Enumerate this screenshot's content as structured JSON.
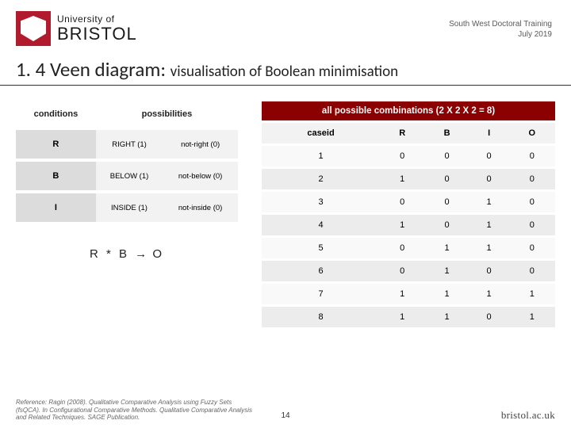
{
  "header": {
    "university_of": "University of",
    "bristol": "BRISTOL",
    "event_line1": "South West Doctoral Training",
    "event_line2": "July 2019"
  },
  "title": {
    "main": "1. 4 Veen diagram:",
    "sub": "visualisation of Boolean minimisation"
  },
  "conditions_table": {
    "headers": {
      "conditions": "conditions",
      "possibilities": "possibilities"
    },
    "rows": [
      {
        "cond": "R",
        "p1": "RIGHT (1)",
        "p2": "not-right (0)"
      },
      {
        "cond": "B",
        "p1": "BELOW (1)",
        "p2": "not-below (0)"
      },
      {
        "cond": "I",
        "p1": "INSIDE (1)",
        "p2": "not-inside (0)"
      }
    ]
  },
  "formula": "R * B → O",
  "combo_table": {
    "title": "all possible combinations (2 X 2 X 2 = 8)",
    "headers": [
      "caseid",
      "R",
      "B",
      "I",
      "O"
    ],
    "rows": [
      [
        "1",
        "0",
        "0",
        "0",
        "0"
      ],
      [
        "2",
        "1",
        "0",
        "0",
        "0"
      ],
      [
        "3",
        "0",
        "0",
        "1",
        "0"
      ],
      [
        "4",
        "1",
        "0",
        "1",
        "0"
      ],
      [
        "5",
        "0",
        "1",
        "1",
        "0"
      ],
      [
        "6",
        "0",
        "1",
        "0",
        "0"
      ],
      [
        "7",
        "1",
        "1",
        "1",
        "1"
      ],
      [
        "8",
        "1",
        "1",
        "0",
        "1"
      ]
    ]
  },
  "footer": {
    "reference": "Reference: Ragin (2008). Qualitative Comparative Analysis using Fuzzy Sets (fsQCA). In Configurational Comparative Methods. Qualitative Comparative Analysis and Related Techniques. SAGE Publication.",
    "page": "14",
    "url": "bristol.ac.uk"
  },
  "colors": {
    "brand_red": "#b01c2e",
    "dark_red": "#8b0000",
    "grey_light": "#f2f2f2",
    "grey_mid": "#dcdcdc"
  }
}
